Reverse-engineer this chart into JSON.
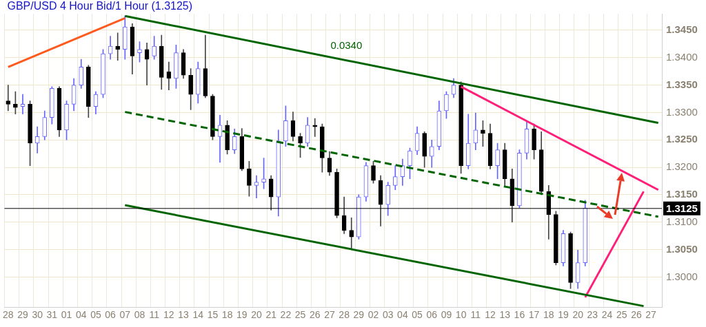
{
  "chart_data": {
    "type": "candlestick",
    "title": "GBP/USD 4 Hour Bid/1 Hour (1.3125)",
    "categories": [
      "28",
      null,
      "29",
      null,
      "30",
      null,
      "31",
      null,
      "01",
      null,
      "04",
      null,
      "05",
      null,
      "06",
      null,
      "07",
      null,
      "08",
      null,
      "11",
      null,
      "12",
      null,
      "13",
      null,
      "14",
      null,
      "15",
      null,
      "18",
      null,
      "19",
      null,
      "20",
      null,
      "21",
      null,
      "22",
      null,
      "25",
      null,
      "26",
      null,
      "27",
      null,
      "28",
      null,
      "29",
      null,
      "02",
      null,
      "03",
      null,
      "04",
      null,
      "05",
      null,
      "06",
      null,
      "09",
      null,
      "10",
      null,
      "11",
      null,
      "12",
      null,
      "13",
      null,
      "16",
      null,
      "17",
      null,
      "18",
      null,
      "19",
      null,
      "20",
      null,
      "23",
      null,
      "24",
      null,
      "25",
      null,
      "26",
      null,
      "27",
      null
    ],
    "ohlc": [
      [
        1.3321,
        1.335,
        1.3303,
        1.3315
      ],
      [
        1.3315,
        1.3338,
        1.3297,
        1.3309
      ],
      [
        1.3311,
        1.3333,
        1.3297,
        1.3315
      ],
      [
        1.3315,
        1.3321,
        1.3203,
        1.3244
      ],
      [
        1.3244,
        1.3274,
        1.3226,
        1.3256
      ],
      [
        1.3256,
        1.3303,
        1.325,
        1.3291
      ],
      [
        1.3291,
        1.3347,
        1.3279,
        1.3344
      ],
      [
        1.3344,
        1.3347,
        1.3256,
        1.3268
      ],
      [
        1.3268,
        1.3321,
        1.325,
        1.3315
      ],
      [
        1.3315,
        1.3362,
        1.3303,
        1.335
      ],
      [
        1.335,
        1.3397,
        1.3344,
        1.3383
      ],
      [
        1.3383,
        1.3386,
        1.3291,
        1.3311
      ],
      [
        1.3311,
        1.3338,
        1.3297,
        1.3333
      ],
      [
        1.3333,
        1.3415,
        1.3327,
        1.3407
      ],
      [
        1.3407,
        1.3439,
        1.3397,
        1.3421
      ],
      [
        1.3421,
        1.3445,
        1.3395,
        1.3415
      ],
      [
        1.3415,
        1.3476,
        1.3397,
        1.3456
      ],
      [
        1.3456,
        1.3462,
        1.337,
        1.3403
      ],
      [
        1.3409,
        1.3429,
        1.3392,
        1.3415
      ],
      [
        1.3415,
        1.3427,
        1.335,
        1.3397
      ],
      [
        1.3403,
        1.3439,
        1.3397,
        1.3421
      ],
      [
        1.3421,
        1.3441,
        1.3342,
        1.3364
      ],
      [
        1.3374,
        1.3392,
        1.3341,
        1.3362
      ],
      [
        1.3362,
        1.3423,
        1.3344,
        1.3409
      ],
      [
        1.3409,
        1.3415,
        1.3362,
        1.3368
      ],
      [
        1.3368,
        1.338,
        1.3305,
        1.3333
      ],
      [
        1.3333,
        1.3392,
        1.3317,
        1.338
      ],
      [
        1.338,
        1.3441,
        1.3327,
        1.333
      ],
      [
        1.333,
        1.3333,
        1.325,
        1.3256
      ],
      [
        1.3256,
        1.3295,
        1.3209,
        1.3277
      ],
      [
        1.3277,
        1.3285,
        1.3224,
        1.3232
      ],
      [
        1.3232,
        1.327,
        1.3225,
        1.3256
      ],
      [
        1.3256,
        1.3271,
        1.3194,
        1.3197
      ],
      [
        1.3197,
        1.3211,
        1.3147,
        1.3167
      ],
      [
        1.3167,
        1.3185,
        1.3144,
        1.3173
      ],
      [
        1.3173,
        1.3217,
        1.3161,
        1.3179
      ],
      [
        1.3179,
        1.3185,
        1.3122,
        1.3146
      ],
      [
        1.3146,
        1.3268,
        1.3111,
        1.3248
      ],
      [
        1.3248,
        1.3312,
        1.3238,
        1.3285
      ],
      [
        1.3285,
        1.3301,
        1.3248,
        1.3256
      ],
      [
        1.3256,
        1.3262,
        1.3218,
        1.3244
      ],
      [
        1.3244,
        1.3291,
        1.3238,
        1.3277
      ],
      [
        1.3277,
        1.3289,
        1.3256,
        1.3274
      ],
      [
        1.3274,
        1.3279,
        1.3191,
        1.3217
      ],
      [
        1.3217,
        1.3229,
        1.3185,
        1.3191
      ],
      [
        1.3191,
        1.3197,
        1.3108,
        1.3112
      ],
      [
        1.3112,
        1.3146,
        1.3079,
        1.3085
      ],
      [
        1.3085,
        1.3108,
        1.3052,
        1.3073
      ],
      [
        1.3073,
        1.315,
        1.3069,
        1.3146
      ],
      [
        1.3146,
        1.3209,
        1.3138,
        1.3203
      ],
      [
        1.3203,
        1.3211,
        1.3171,
        1.3176
      ],
      [
        1.3176,
        1.3185,
        1.3093,
        1.3132
      ],
      [
        1.3132,
        1.3173,
        1.3112,
        1.3167
      ],
      [
        1.3167,
        1.3203,
        1.3159,
        1.3183
      ],
      [
        1.3183,
        1.3215,
        1.3167,
        1.3203
      ],
      [
        1.3203,
        1.3235,
        1.3179,
        1.323
      ],
      [
        1.323,
        1.3274,
        1.3223,
        1.3262
      ],
      [
        1.3262,
        1.3265,
        1.32,
        1.322
      ],
      [
        1.322,
        1.325,
        1.32,
        1.3238
      ],
      [
        1.3238,
        1.3321,
        1.3232,
        1.3303
      ],
      [
        1.3303,
        1.3338,
        1.3289,
        1.3333
      ],
      [
        1.3333,
        1.3362,
        1.3327,
        1.335
      ],
      [
        1.335,
        1.3356,
        1.3189,
        1.3203
      ],
      [
        1.3203,
        1.3297,
        1.3197,
        1.3244
      ],
      [
        1.3244,
        1.3299,
        1.3232,
        1.3268
      ],
      [
        1.3268,
        1.3285,
        1.3238,
        1.3262
      ],
      [
        1.3262,
        1.3279,
        1.3197,
        1.3203
      ],
      [
        1.3203,
        1.3244,
        1.3179,
        1.3232
      ],
      [
        1.3232,
        1.3244,
        1.3167,
        1.3179
      ],
      [
        1.3179,
        1.3197,
        1.31,
        1.313
      ],
      [
        1.313,
        1.3232,
        1.3126,
        1.3226
      ],
      [
        1.3226,
        1.3283,
        1.3215,
        1.327
      ],
      [
        1.327,
        1.3279,
        1.3215,
        1.3232
      ],
      [
        1.3232,
        1.3265,
        1.315,
        1.3156
      ],
      [
        1.3156,
        1.3167,
        1.3069,
        1.3114
      ],
      [
        1.3114,
        1.312,
        1.3022,
        1.3026
      ],
      [
        1.3026,
        1.3085,
        1.302,
        1.3079
      ],
      [
        1.3079,
        1.3082,
        1.2979,
        1.299
      ],
      [
        1.299,
        1.3049,
        1.2979,
        1.3026
      ],
      [
        1.3026,
        1.314,
        1.302,
        1.3126
      ],
      null,
      null,
      null,
      null,
      null,
      null,
      null,
      null,
      null,
      null
    ],
    "series": [
      {
        "type": "line",
        "color": "#ff5a1e",
        "line_style": "solid",
        "values": [
          1.3383,
          null,
          null,
          null,
          null,
          null,
          null,
          null,
          null,
          null,
          null,
          null,
          null,
          null,
          null,
          null,
          1.3472,
          null,
          null,
          null,
          null,
          null,
          null,
          null,
          null,
          null,
          null,
          null,
          null,
          null,
          null,
          null,
          null,
          null,
          null,
          null,
          null,
          null,
          null,
          null,
          null,
          null,
          null,
          null,
          null,
          null,
          null,
          null,
          null,
          null,
          null,
          null,
          null,
          null,
          null,
          null,
          null,
          null,
          null,
          null,
          null,
          null,
          null,
          null,
          null,
          null,
          null,
          null,
          null,
          null,
          null,
          null,
          null,
          null,
          null,
          null,
          null,
          null,
          null,
          null,
          null,
          null,
          null,
          null,
          null,
          null,
          null,
          null,
          null,
          null
        ]
      },
      {
        "type": "line",
        "color": "#006400",
        "line_style": "solid",
        "values": [
          null,
          null,
          null,
          null,
          null,
          null,
          null,
          null,
          null,
          null,
          null,
          null,
          null,
          null,
          null,
          null,
          1.3476,
          null,
          null,
          null,
          null,
          null,
          null,
          null,
          null,
          null,
          null,
          null,
          null,
          null,
          null,
          null,
          null,
          null,
          null,
          null,
          null,
          null,
          null,
          null,
          null,
          null,
          null,
          null,
          null,
          null,
          null,
          null,
          null,
          null,
          null,
          null,
          null,
          null,
          null,
          null,
          null,
          null,
          null,
          null,
          null,
          null,
          null,
          null,
          null,
          null,
          null,
          null,
          null,
          null,
          null,
          null,
          null,
          null,
          null,
          null,
          null,
          null,
          null,
          null,
          null,
          null,
          null,
          null,
          null,
          null,
          null,
          null,
          null,
          1.3281
        ]
      },
      {
        "type": "line",
        "color": "#006400",
        "line_style": "dashed",
        "values": [
          null,
          null,
          null,
          null,
          null,
          null,
          null,
          null,
          null,
          null,
          null,
          null,
          null,
          null,
          null,
          null,
          1.3301,
          null,
          null,
          null,
          null,
          null,
          null,
          null,
          null,
          null,
          null,
          null,
          null,
          null,
          null,
          null,
          null,
          null,
          null,
          null,
          null,
          null,
          null,
          null,
          null,
          null,
          null,
          null,
          null,
          null,
          null,
          null,
          null,
          null,
          null,
          null,
          null,
          null,
          null,
          null,
          null,
          null,
          null,
          null,
          null,
          null,
          null,
          null,
          null,
          null,
          null,
          null,
          null,
          null,
          null,
          null,
          null,
          null,
          null,
          null,
          null,
          null,
          null,
          null,
          null,
          null,
          null,
          null,
          null,
          null,
          null,
          null,
          null,
          1.311
        ]
      },
      {
        "type": "line",
        "color": "#006400",
        "line_style": "solid",
        "values": [
          null,
          null,
          null,
          null,
          null,
          null,
          null,
          null,
          null,
          null,
          null,
          null,
          null,
          null,
          null,
          null,
          1.3131,
          null,
          null,
          null,
          null,
          null,
          null,
          null,
          null,
          null,
          null,
          null,
          null,
          null,
          null,
          null,
          null,
          null,
          null,
          null,
          null,
          null,
          null,
          null,
          null,
          null,
          null,
          null,
          null,
          null,
          null,
          null,
          null,
          null,
          null,
          null,
          null,
          null,
          null,
          null,
          null,
          null,
          null,
          null,
          null,
          null,
          null,
          null,
          null,
          null,
          null,
          null,
          null,
          null,
          null,
          null,
          null,
          null,
          null,
          null,
          null,
          null,
          null,
          null,
          null,
          null,
          null,
          null,
          null,
          null,
          null,
          1.2947,
          null,
          null
        ]
      },
      {
        "type": "line",
        "color": "#ff1e78",
        "line_style": "solid",
        "values": [
          null,
          null,
          null,
          null,
          null,
          null,
          null,
          null,
          null,
          null,
          null,
          null,
          null,
          null,
          null,
          null,
          null,
          null,
          null,
          null,
          null,
          null,
          null,
          null,
          null,
          null,
          null,
          null,
          null,
          null,
          null,
          null,
          null,
          null,
          null,
          null,
          null,
          null,
          null,
          null,
          null,
          null,
          null,
          null,
          null,
          null,
          null,
          null,
          null,
          null,
          null,
          null,
          null,
          null,
          null,
          null,
          null,
          null,
          null,
          null,
          null,
          null,
          1.3347,
          null,
          null,
          null,
          null,
          null,
          null,
          null,
          null,
          null,
          null,
          null,
          null,
          null,
          null,
          null,
          null,
          null,
          null,
          null,
          null,
          null,
          null,
          null,
          null,
          null,
          null,
          1.3159
        ]
      },
      {
        "type": "line",
        "color": "#ff1e78",
        "line_style": "solid",
        "values": [
          null,
          null,
          null,
          null,
          null,
          null,
          null,
          null,
          null,
          null,
          null,
          null,
          null,
          null,
          null,
          null,
          null,
          null,
          null,
          null,
          null,
          null,
          null,
          null,
          null,
          null,
          null,
          null,
          null,
          null,
          null,
          null,
          null,
          null,
          null,
          null,
          null,
          null,
          null,
          null,
          null,
          null,
          null,
          null,
          null,
          null,
          null,
          null,
          null,
          null,
          null,
          null,
          null,
          null,
          null,
          null,
          null,
          null,
          null,
          null,
          null,
          null,
          null,
          null,
          null,
          null,
          null,
          null,
          null,
          null,
          null,
          null,
          null,
          null,
          null,
          null,
          null,
          null,
          null,
          1.2963,
          null,
          null,
          null,
          null,
          null,
          null,
          null,
          1.3156,
          null,
          null
        ]
      }
    ],
    "ylim": [
      1.2945,
      1.348
    ],
    "yticks": [
      {
        "value": 1.3,
        "label": "1.3000"
      },
      {
        "value": 1.305,
        "label": "1.3050"
      },
      {
        "value": 1.31,
        "label": "1.3100"
      },
      {
        "value": 1.315,
        "label": "1.3150"
      },
      {
        "value": 1.32,
        "label": "1.3200"
      },
      {
        "value": 1.325,
        "label": "1.3250"
      },
      {
        "value": 1.33,
        "label": "1.3300"
      },
      {
        "value": 1.335,
        "label": "1.3350"
      },
      {
        "value": 1.34,
        "label": "1.3400"
      },
      {
        "value": 1.345,
        "label": "1.3450"
      }
    ],
    "ref_lines": [
      {
        "axis": "y",
        "value": 1.3125,
        "label": "1.3125",
        "color": "#000000"
      }
    ],
    "annotations": [
      "0.0340"
    ],
    "grid": true,
    "legend": false
  }
}
